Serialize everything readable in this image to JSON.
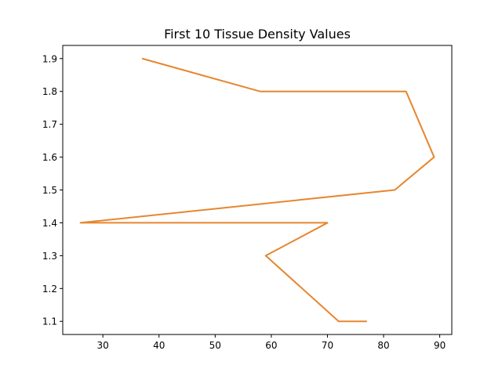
{
  "chart_data": {
    "type": "line",
    "title": "First 10 Tissue Density Values",
    "xlabel": "",
    "ylabel": "",
    "xlim": [
      22.85,
      92.15
    ],
    "ylim": [
      1.06,
      1.94
    ],
    "xticks": [
      30,
      40,
      50,
      60,
      70,
      80,
      90
    ],
    "yticks": [
      1.1,
      1.2,
      1.3,
      1.4,
      1.5,
      1.6,
      1.7,
      1.8,
      1.9
    ],
    "grid": false,
    "legend": "none",
    "series": [
      {
        "color": "#e6862e",
        "points": [
          [
            37,
            1.9
          ],
          [
            58,
            1.8
          ],
          [
            84,
            1.8
          ],
          [
            89,
            1.6
          ],
          [
            82,
            1.5
          ],
          [
            26,
            1.4
          ],
          [
            70,
            1.4
          ],
          [
            59,
            1.3
          ],
          [
            72,
            1.1
          ],
          [
            77,
            1.1
          ]
        ]
      }
    ]
  }
}
